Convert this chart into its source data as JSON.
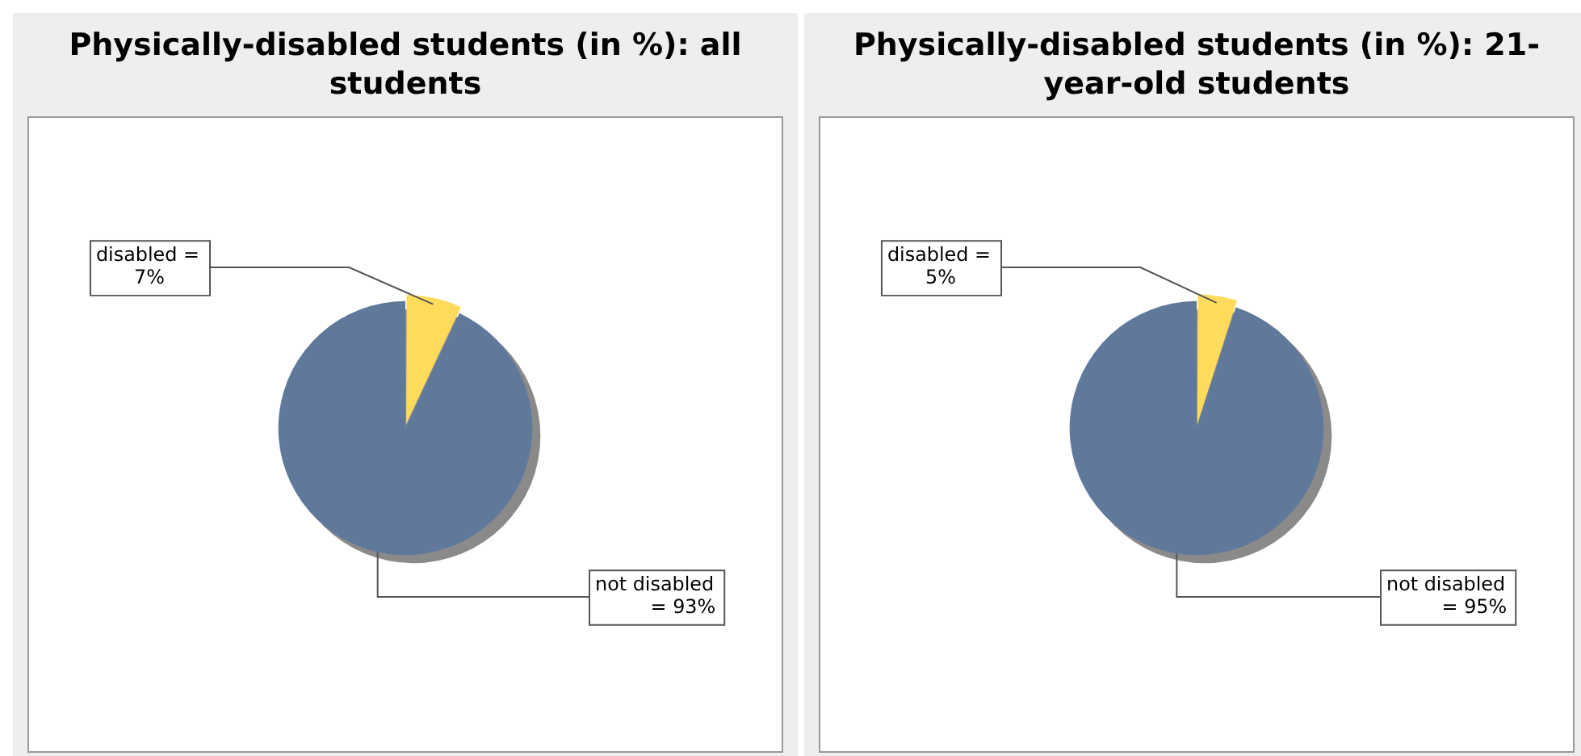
{
  "chart_data": [
    {
      "type": "pie",
      "title": "Physically-disabled students (in %): all students",
      "categories": [
        "disabled =",
        "not disabled"
      ],
      "values": [
        7,
        93
      ],
      "value_labels": [
        "7%",
        "= 93%"
      ],
      "colors": [
        "#ffdb5c",
        "#60789a"
      ],
      "legend": false
    },
    {
      "type": "pie",
      "title": "Physically-disabled students (in %): 21-year-old students",
      "categories": [
        "disabled =",
        "not disabled"
      ],
      "values": [
        5,
        95
      ],
      "value_labels": [
        "5%",
        "= 95%"
      ],
      "colors": [
        "#ffdb5c",
        "#60789a"
      ],
      "legend": false
    }
  ]
}
